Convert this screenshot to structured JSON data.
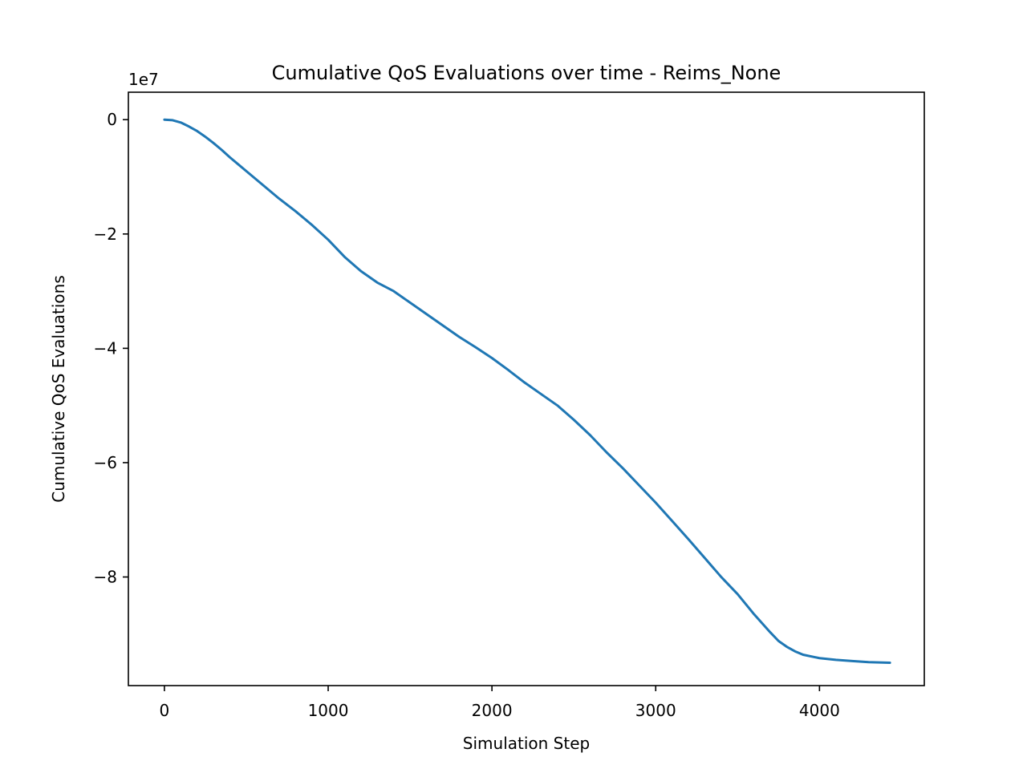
{
  "chart_data": {
    "type": "line",
    "title": "Cumulative QoS Evaluations over time - Reims_None",
    "xlabel": "Simulation Step",
    "ylabel": "Cumulative QoS Evaluations",
    "y_offset_label": "1e7",
    "y_scale_factor": 10000000,
    "xlim": [
      -220,
      4640
    ],
    "ylim": [
      -9.9,
      0.48
    ],
    "x_ticks": [
      0,
      1000,
      2000,
      3000,
      4000
    ],
    "x_tick_labels": [
      "0",
      "1000",
      "2000",
      "3000",
      "4000"
    ],
    "y_ticks": [
      0,
      -2,
      -4,
      -6,
      -8
    ],
    "y_tick_labels": [
      "0",
      "−2",
      "−4",
      "−6",
      "−8"
    ],
    "grid": false,
    "colors": {
      "line": "#1f77b4"
    },
    "series": [
      {
        "x": [
          0,
          50,
          100,
          150,
          200,
          250,
          300,
          350,
          400,
          450,
          500,
          600,
          700,
          800,
          900,
          1000,
          1100,
          1200,
          1300,
          1400,
          1500,
          1600,
          1700,
          1800,
          1900,
          2000,
          2100,
          2200,
          2300,
          2400,
          2500,
          2600,
          2700,
          2800,
          2900,
          3000,
          3100,
          3200,
          3300,
          3400,
          3500,
          3600,
          3700,
          3750,
          3800,
          3850,
          3900,
          4000,
          4100,
          4200,
          4300,
          4430
        ],
        "values": [
          0,
          -0.01,
          -0.05,
          -0.12,
          -0.2,
          -0.3,
          -0.41,
          -0.53,
          -0.66,
          -0.78,
          -0.9,
          -1.14,
          -1.38,
          -1.6,
          -1.84,
          -2.1,
          -2.4,
          -2.65,
          -2.85,
          -3.0,
          -3.2,
          -3.4,
          -3.6,
          -3.8,
          -3.98,
          -4.17,
          -4.38,
          -4.6,
          -4.8,
          -5.0,
          -5.25,
          -5.52,
          -5.82,
          -6.1,
          -6.4,
          -6.7,
          -7.02,
          -7.34,
          -7.67,
          -8.0,
          -8.3,
          -8.65,
          -8.97,
          -9.12,
          -9.22,
          -9.3,
          -9.36,
          -9.42,
          -9.45,
          -9.47,
          -9.49,
          -9.5
        ]
      }
    ]
  }
}
